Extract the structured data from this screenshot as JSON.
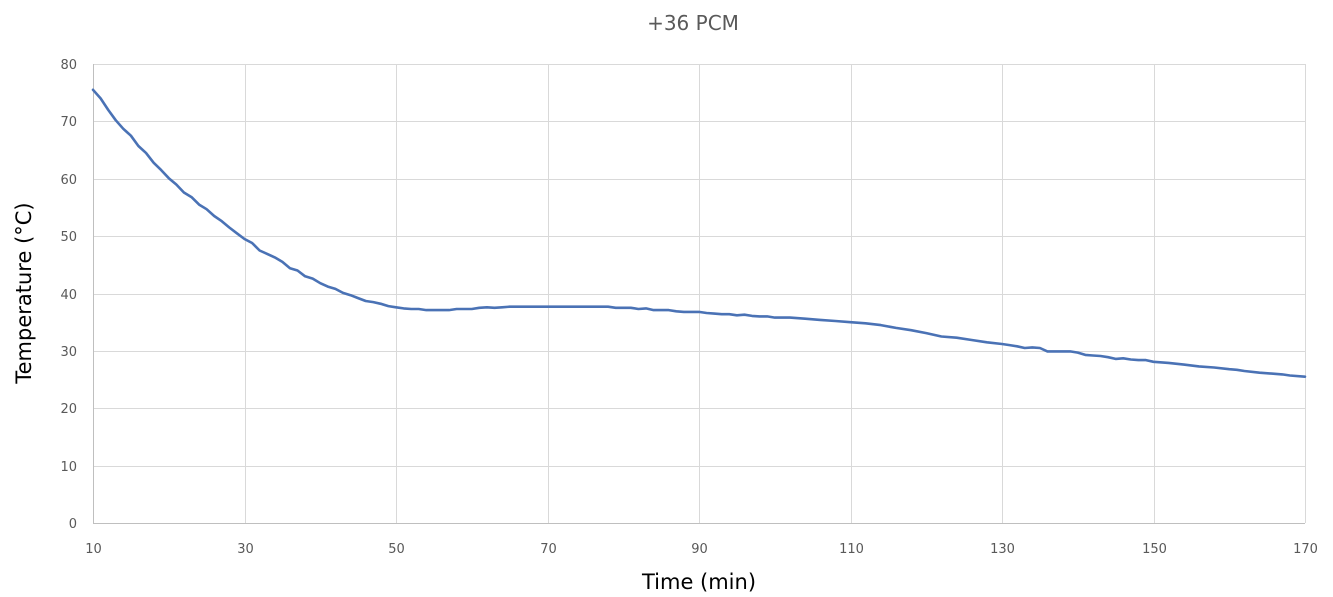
{
  "chart_data": {
    "type": "line",
    "title": "+36 PCM",
    "xlabel": "Time (min)",
    "ylabel": "Temperature (°C)",
    "xlim": [
      10,
      170
    ],
    "ylim": [
      0,
      80
    ],
    "x_ticks": [
      10,
      30,
      50,
      70,
      90,
      110,
      130,
      150,
      170
    ],
    "y_ticks": [
      0,
      10,
      20,
      30,
      40,
      50,
      60,
      70,
      80
    ],
    "grid": true,
    "legend": "none",
    "colors": {
      "series": "#4a72b5",
      "grid": "#d9d9d9",
      "tick_text": "#595959",
      "title_text": "#595959",
      "axis_title_text": "#000000"
    },
    "series": [
      {
        "x": [
          10,
          11,
          12,
          13,
          14,
          15,
          16,
          17,
          18,
          19,
          20,
          21,
          22,
          23,
          24,
          25,
          26,
          27,
          28,
          29,
          30,
          31,
          32,
          33,
          34,
          35,
          36,
          37,
          38,
          39,
          40,
          41,
          42,
          43,
          44,
          45,
          46,
          47,
          48,
          49,
          50,
          51,
          52,
          53,
          54,
          55,
          56,
          57,
          58,
          59,
          60,
          61,
          62,
          63,
          64,
          65,
          66,
          68,
          70,
          72,
          74,
          76,
          78,
          79,
          80,
          81,
          82,
          83,
          84,
          85,
          86,
          87,
          88,
          89,
          90,
          91,
          92,
          93,
          94,
          95,
          96,
          97,
          98,
          99,
          100,
          102,
          104,
          106,
          108,
          110,
          112,
          114,
          116,
          118,
          120,
          122,
          124,
          126,
          128,
          130,
          131,
          132,
          133,
          134,
          135,
          136,
          137,
          138,
          139,
          140,
          141,
          142,
          143,
          144,
          145,
          146,
          147,
          148,
          149,
          150,
          152,
          154,
          156,
          158,
          160,
          161,
          162,
          164,
          166,
          167,
          168,
          170
        ],
        "values": [
          75.5,
          74.0,
          72.0,
          70.2,
          68.7,
          67.5,
          65.7,
          64.5,
          62.8,
          61.5,
          60.1,
          59.0,
          57.6,
          56.8,
          55.5,
          54.7,
          53.5,
          52.6,
          51.5,
          50.5,
          49.5,
          48.8,
          47.5,
          46.9,
          46.3,
          45.5,
          44.4,
          44.0,
          43.0,
          42.6,
          41.8,
          41.2,
          40.8,
          40.1,
          39.7,
          39.2,
          38.7,
          38.5,
          38.2,
          37.8,
          37.6,
          37.4,
          37.3,
          37.3,
          37.1,
          37.1,
          37.1,
          37.1,
          37.3,
          37.3,
          37.3,
          37.5,
          37.6,
          37.5,
          37.6,
          37.7,
          37.7,
          37.7,
          37.7,
          37.7,
          37.7,
          37.7,
          37.7,
          37.5,
          37.5,
          37.5,
          37.3,
          37.4,
          37.1,
          37.1,
          37.1,
          36.9,
          36.8,
          36.8,
          36.8,
          36.6,
          36.5,
          36.4,
          36.4,
          36.2,
          36.3,
          36.1,
          36.0,
          36.0,
          35.8,
          35.8,
          35.6,
          35.4,
          35.2,
          35.0,
          34.8,
          34.5,
          34.0,
          33.6,
          33.1,
          32.5,
          32.3,
          31.9,
          31.5,
          31.2,
          31.0,
          30.8,
          30.5,
          30.6,
          30.5,
          29.9,
          29.9,
          29.9,
          29.9,
          29.7,
          29.3,
          29.2,
          29.1,
          28.9,
          28.6,
          28.7,
          28.5,
          28.4,
          28.4,
          28.1,
          27.9,
          27.6,
          27.3,
          27.1,
          26.8,
          26.7,
          26.5,
          26.2,
          26.0,
          25.9,
          25.7,
          25.5
        ]
      }
    ]
  }
}
